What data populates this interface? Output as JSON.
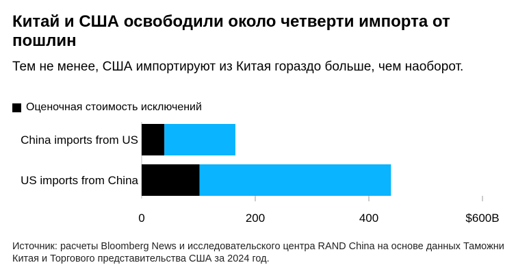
{
  "header": {
    "title": "Китай и США освободили около четверти импорта от пошлин",
    "subtitle": "Тем не менее, США импортируют из Китая гораздо больше, чем наоборот."
  },
  "legend": {
    "label": "Оценочная стоимость исключений",
    "color": "#000000"
  },
  "chart_data": {
    "type": "bar",
    "orientation": "horizontal",
    "stacked": true,
    "categories": [
      "China imports from US",
      "US imports from China"
    ],
    "series": [
      {
        "name": "Оценочная стоимость исключений",
        "values": [
          40,
          102
        ],
        "color": "#000000"
      },
      {
        "values": [
          125,
          337
        ],
        "color": "#0BB4FF"
      }
    ],
    "totals": [
      165,
      439
    ],
    "xlim": [
      0,
      600
    ],
    "xticks": [
      0,
      200,
      400,
      600
    ],
    "xtick_labels": [
      "0",
      "200",
      "400",
      "$600B"
    ],
    "grid": false,
    "legend_position": "top-left"
  },
  "footer": {
    "source": "Источник: расчеты Bloomberg News и исследовательского центра RAND China на основе данных Таможни Китая и Торгового представительства США за 2024 год."
  }
}
